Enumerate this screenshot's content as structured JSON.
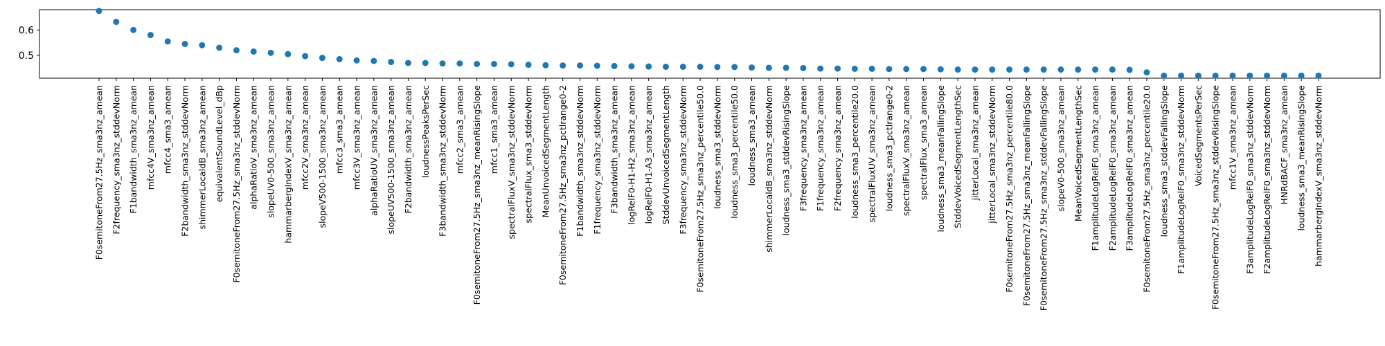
{
  "chart_data": {
    "type": "scatter",
    "title": "",
    "xlabel": "",
    "ylabel": "",
    "ylim": [
      0.41,
      0.68
    ],
    "yticks": [
      0.5,
      0.6
    ],
    "grid": false,
    "marker_color": "#1f77b4",
    "categories": [
      "F0semitoneFrom27.5Hz_sma3nz_amean",
      "F2frequency_sma3nz_stddevNorm",
      "F1bandwidth_sma3nz_amean",
      "mfcc4V_sma3nz_amean",
      "mfcc4_sma3_amean",
      "F2bandwidth_sma3nz_stddevNorm",
      "shimmerLocaldB_sma3nz_amean",
      "equivalentSoundLevel_dBp",
      "F0semitoneFrom27.5Hz_sma3nz_stddevNorm",
      "alphaRatioV_sma3nz_amean",
      "slopeUV0-500_sma3nz_amean",
      "hammarbergIndexV_sma3nz_amean",
      "mfcc2V_sma3nz_amean",
      "slopeV500-1500_sma3nz_amean",
      "mfcc3_sma3_amean",
      "mfcc3V_sma3nz_amean",
      "alphaRatioUV_sma3nz_amean",
      "slopeUV500-1500_sma3nz_amean",
      "F2bandwidth_sma3nz_amean",
      "loudnessPeaksPerSec",
      "F3bandwidth_sma3nz_stddevNorm",
      "mfcc2_sma3_amean",
      "F0semitoneFrom27.5Hz_sma3nz_meanRisingSlope",
      "mfcc1_sma3_amean",
      "spectralFluxV_sma3nz_stddevNorm",
      "spectralFlux_sma3_stddevNorm",
      "MeanUnvoicedSegmentLength",
      "F0semitoneFrom27.5Hz_sma3nz_pctlrange0-2",
      "F1bandwidth_sma3nz_stddevNorm",
      "F1frequency_sma3nz_stddevNorm",
      "F3bandwidth_sma3nz_amean",
      "logRelF0-H1-H2_sma3nz_amean",
      "logRelF0-H1-A3_sma3nz_amean",
      "StddevUnvoicedSegmentLength",
      "F3frequency_sma3nz_stddevNorm",
      "F0semitoneFrom27.5Hz_sma3nz_percentile50.0",
      "loudness_sma3_stddevNorm",
      "loudness_sma3_percentile50.0",
      "loudness_sma3_amean",
      "shimmerLocaldB_sma3nz_stddevNorm",
      "loudness_sma3_stddevRisingSlope",
      "F3frequency_sma3nz_amean",
      "F1frequency_sma3nz_amean",
      "F2frequency_sma3nz_amean",
      "loudness_sma3_percentile20.0",
      "spectralFluxUV_sma3nz_amean",
      "loudness_sma3_pctlrange0-2",
      "spectralFluxV_sma3nz_amean",
      "spectralFlux_sma3_amean",
      "loudness_sma3_meanFallingSlope",
      "StddevVoicedSegmentLengthSec",
      "jitterLocal_sma3nz_amean",
      "jitterLocal_sma3nz_stddevNorm",
      "F0semitoneFrom27.5Hz_sma3nz_percentile80.0",
      "F0semitoneFrom27.5Hz_sma3nz_meanFallingSlope",
      "F0semitoneFrom27.5Hz_sma3nz_stddevFallingSlope",
      "slopeV0-500_sma3nz_amean",
      "MeanVoicedSegmentLengthSec",
      "F1amplitudeLogRelF0_sma3nz_amean",
      "F2amplitudeLogRelF0_sma3nz_amean",
      "F3amplitudeLogRelF0_sma3nz_amean",
      "F0semitoneFrom27.5Hz_sma3nz_percentile20.0",
      "loudness_sma3_stddevFallingSlope",
      "F1amplitudeLogRelF0_sma3nz_stddevNorm",
      "VoicedSegmentsPerSec",
      "F0semitoneFrom27.5Hz_sma3nz_stddevRisingSlope",
      "mfcc1V_sma3nz_amean",
      "F3amplitudeLogRelF0_sma3nz_stddevNorm",
      "F2amplitudeLogRelF0_sma3nz_stddevNorm",
      "HNRdBACF_sma3nz_amean",
      "loudness_sma3_meanRisingSlope",
      "hammarbergIndexV_sma3nz_stddevNorm"
    ],
    "values": [
      0.675,
      0.632,
      0.6,
      0.58,
      0.555,
      0.545,
      0.54,
      0.53,
      0.52,
      0.515,
      0.51,
      0.505,
      0.497,
      0.49,
      0.485,
      0.48,
      0.478,
      0.474,
      0.47,
      0.47,
      0.468,
      0.468,
      0.466,
      0.466,
      0.465,
      0.463,
      0.461,
      0.46,
      0.46,
      0.459,
      0.458,
      0.457,
      0.456,
      0.455,
      0.455,
      0.455,
      0.454,
      0.454,
      0.452,
      0.451,
      0.451,
      0.45,
      0.448,
      0.448,
      0.447,
      0.447,
      0.446,
      0.446,
      0.446,
      0.445,
      0.444,
      0.444,
      0.444,
      0.444,
      0.444,
      0.444,
      0.444,
      0.444,
      0.444,
      0.444,
      0.443,
      0.433,
      0.42,
      0.42,
      0.42,
      0.42,
      0.42,
      0.42,
      0.42,
      0.42,
      0.42,
      0.42
    ]
  }
}
